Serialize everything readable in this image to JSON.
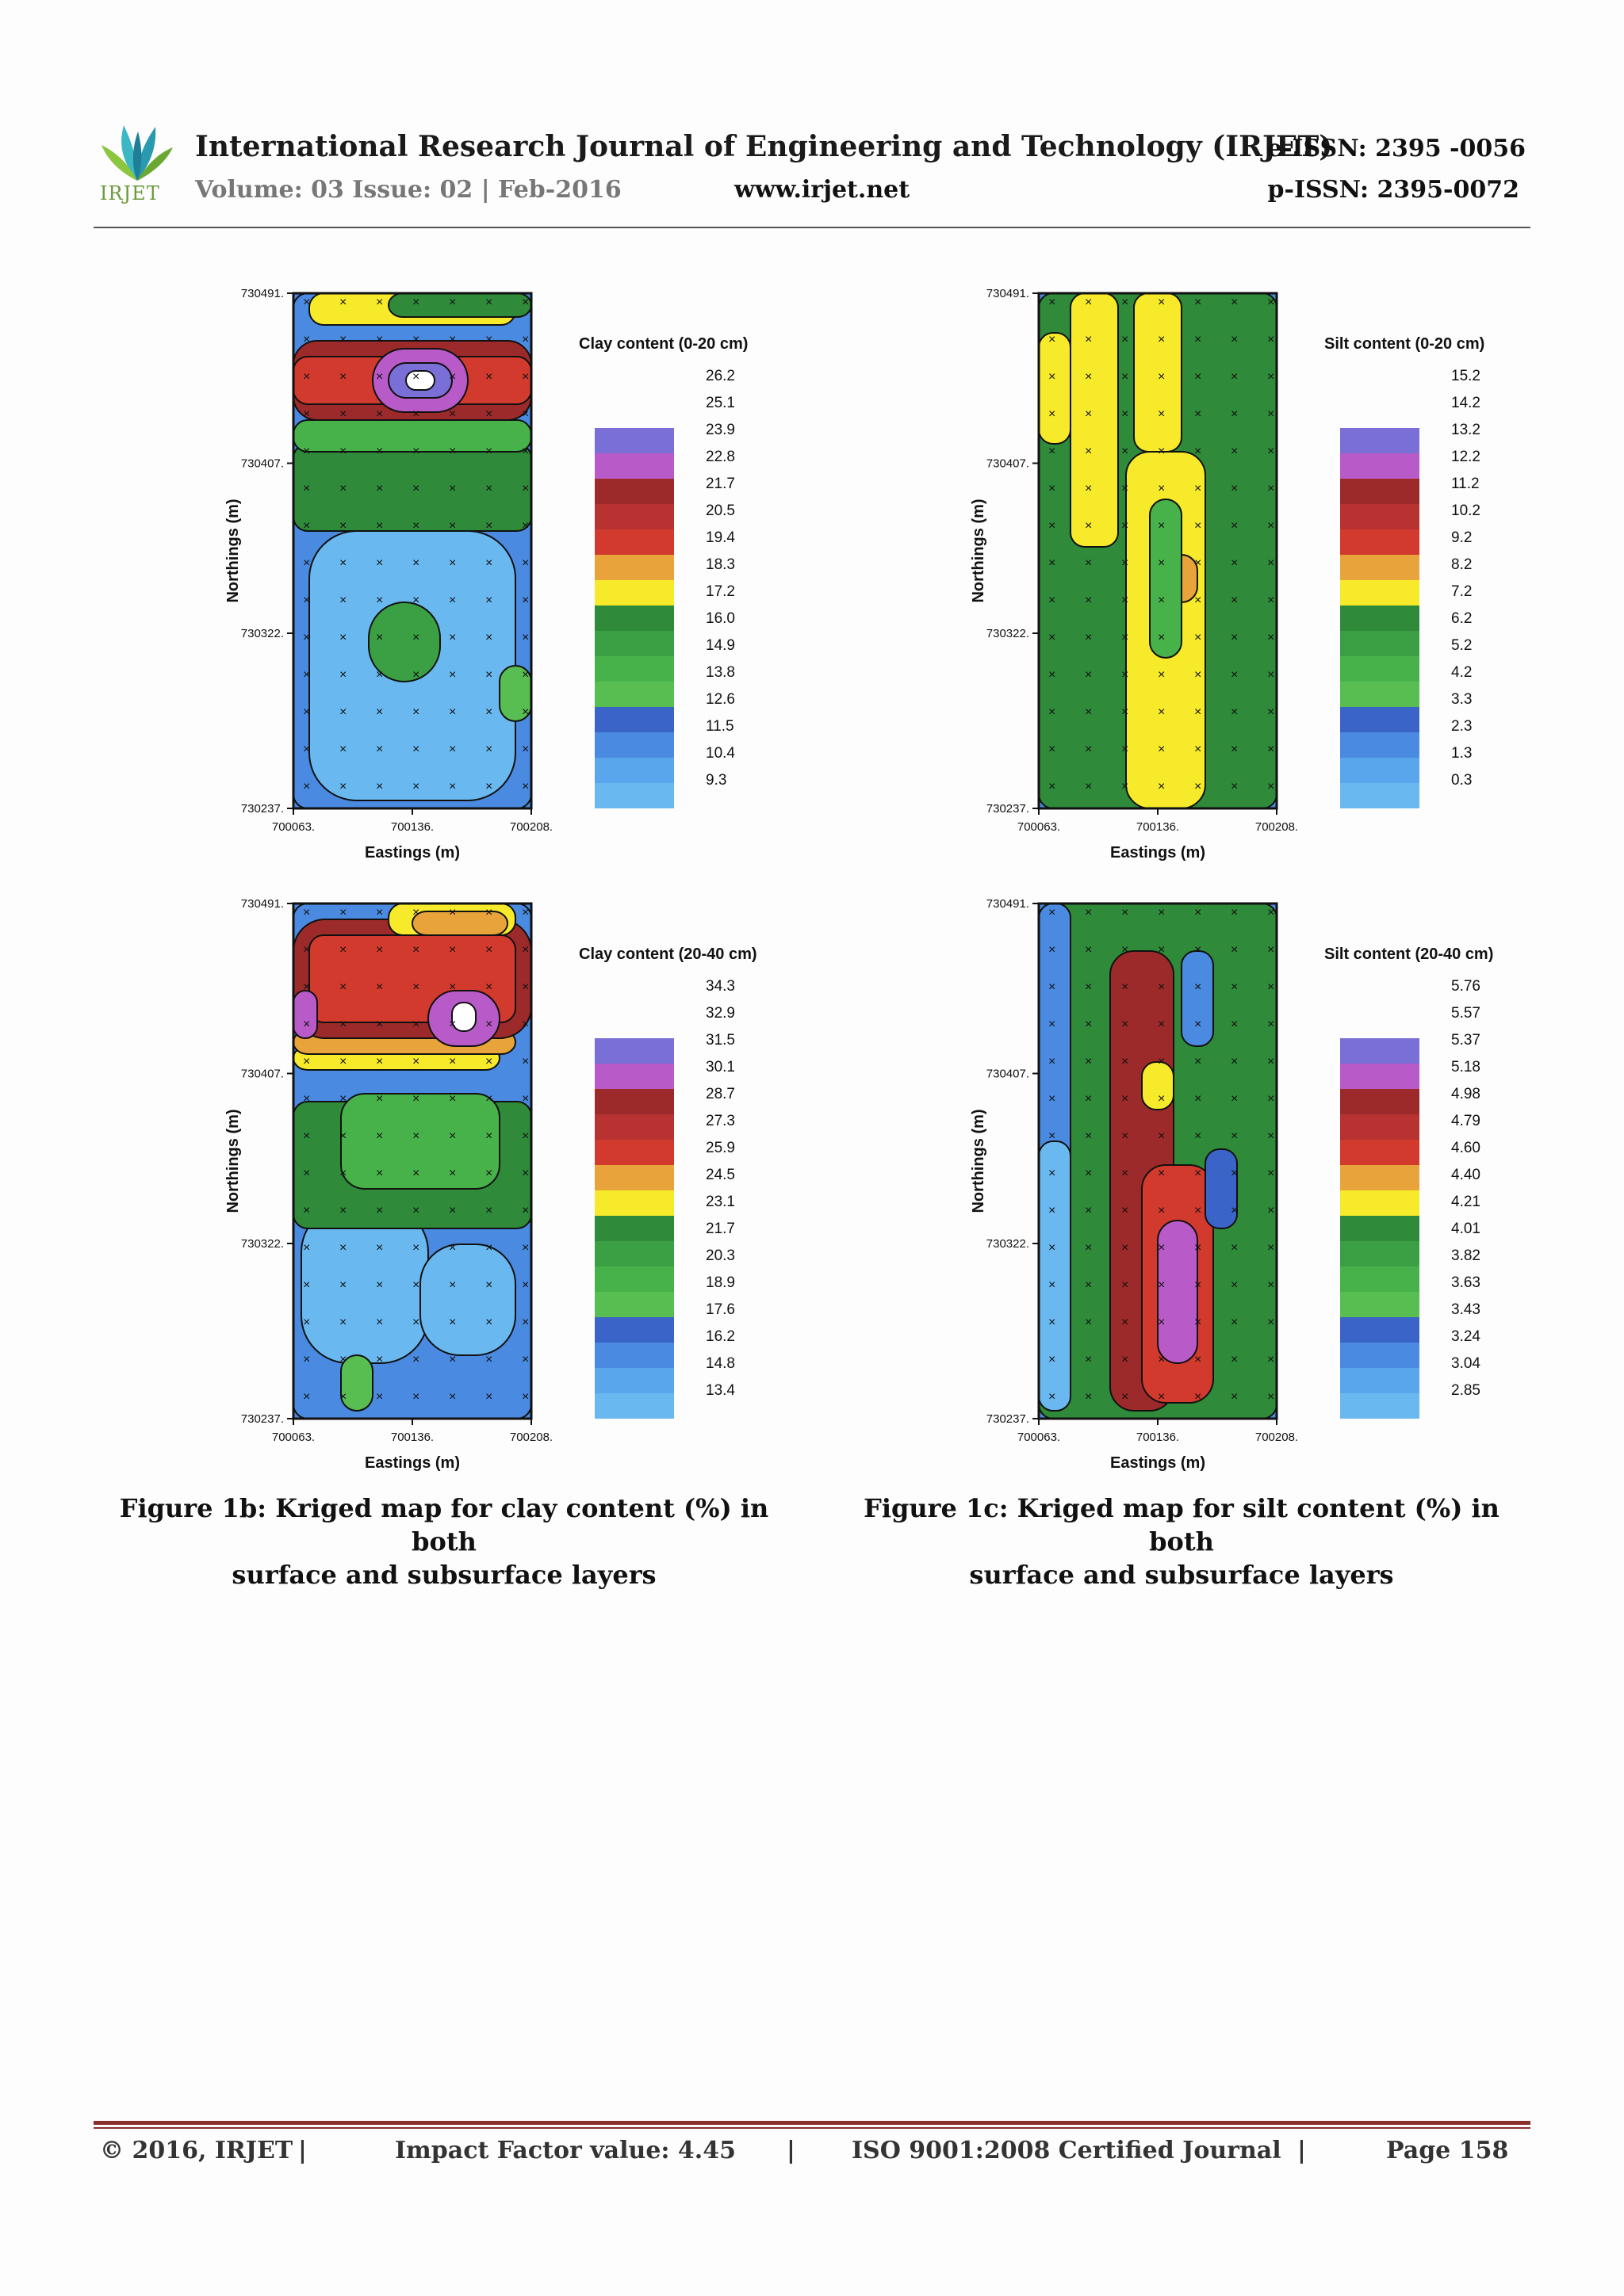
{
  "header": {
    "logo_text": "IRJET",
    "journal_title": "International Research Journal of Engineering and Technology (IRJET)",
    "eissn": "e-ISSN: 2395 -0056",
    "volume": "Volume: 03 Issue: 02 | Feb-2016",
    "website": "www.irjet.net",
    "pissn": "p-ISSN: 2395-0072"
  },
  "figures": [
    {
      "legend_title": "Clay content (0-20 cm)",
      "legend_values": [
        "26.2",
        "25.1",
        "23.9",
        "22.8",
        "21.7",
        "20.5",
        "19.4",
        "18.3",
        "17.2",
        "16.0",
        "14.9",
        "13.8",
        "12.6",
        "11.5",
        "10.4",
        "9.3"
      ],
      "y_ticks": [
        "730491.",
        "730407.",
        "730322.",
        "730237."
      ],
      "x_ticks": [
        "700063.",
        "700136.",
        "700208."
      ],
      "ylabel": "Northings (m)",
      "xlabel": "Eastings (m)"
    },
    {
      "legend_title": "Silt content (0-20 cm)",
      "legend_values": [
        "15.2",
        "14.2",
        "13.2",
        "12.2",
        "11.2",
        "10.2",
        "9.2",
        "8.2",
        "7.2",
        "6.2",
        "5.2",
        "4.2",
        "3.3",
        "2.3",
        "1.3",
        "0.3"
      ],
      "y_ticks": [
        "730491.",
        "730407.",
        "730322.",
        "730237."
      ],
      "x_ticks": [
        "700063.",
        "700136.",
        "700208."
      ],
      "ylabel": "Northings (m)",
      "xlabel": "Eastings (m)"
    },
    {
      "legend_title": "Clay content (20-40 cm)",
      "legend_values": [
        "34.3",
        "32.9",
        "31.5",
        "30.1",
        "28.7",
        "27.3",
        "25.9",
        "24.5",
        "23.1",
        "21.7",
        "20.3",
        "18.9",
        "17.6",
        "16.2",
        "14.8",
        "13.4"
      ],
      "y_ticks": [
        "730491.",
        "730407.",
        "730322.",
        "730237."
      ],
      "x_ticks": [
        "700063.",
        "700136.",
        "700208."
      ],
      "ylabel": "Northings (m)",
      "xlabel": "Eastings (m)"
    },
    {
      "legend_title": "Silt content (20-40 cm)",
      "legend_values": [
        "5.76",
        "5.57",
        "5.37",
        "5.18",
        "4.98",
        "4.79",
        "4.60",
        "4.40",
        "4.21",
        "4.01",
        "3.82",
        "3.63",
        "3.43",
        "3.24",
        "3.04",
        "2.85"
      ],
      "y_ticks": [
        "730491.",
        "730407.",
        "730322.",
        "730237."
      ],
      "x_ticks": [
        "700063.",
        "700136.",
        "700208."
      ],
      "ylabel": "Northings (m)",
      "xlabel": "Eastings (m)"
    }
  ],
  "captions": {
    "fig1b_line1": "Figure 1b: Kriged map for clay content (%) in both",
    "fig1b_line2": "surface and subsurface layers",
    "fig1c_line1": "Figure 1c: Kriged map for silt content (%) in both",
    "fig1c_line2": "surface and subsurface layers"
  },
  "footer": {
    "copyright": "© 2016, IRJET",
    "sep1": "|",
    "impact": "Impact Factor value: 4.45",
    "sep2": "|",
    "iso": "ISO 9001:2008 Certified Journal",
    "sep3": "|",
    "page": "Page 158"
  },
  "colors": {
    "legend_bands": [
      "#7a6fd6",
      "#b85ac8",
      "#9c2a2a",
      "#b83232",
      "#d23a2e",
      "#e8a43a",
      "#f7ea2a",
      "#2f8a3a",
      "#3aa043",
      "#48b24a",
      "#58be52",
      "#3a64c8",
      "#4a8ae0",
      "#5aa6ec",
      "#6ab8f0"
    ],
    "rule_footer": "#8b2d2d"
  }
}
